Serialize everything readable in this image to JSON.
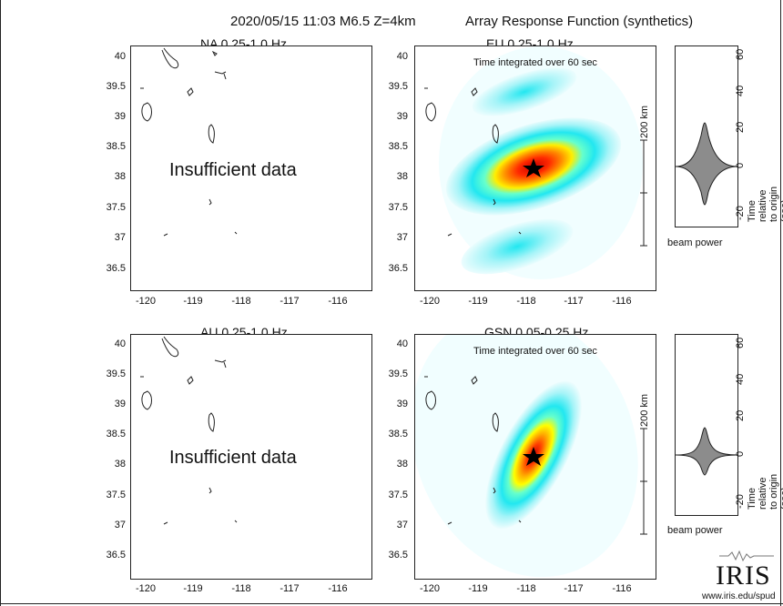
{
  "header": {
    "event": "2020/05/15 11:03  M6.5  Z=4km",
    "title": "Array Response Function (synthetics)"
  },
  "panels": [
    {
      "id": "na",
      "title": "NA  0.25-1.0 Hz",
      "note": "Insufficient data",
      "subtitle": ""
    },
    {
      "id": "eu",
      "title": "EU  0.25-1.0 Hz",
      "note": "",
      "subtitle": "Time integrated over 60 sec"
    },
    {
      "id": "au",
      "title": "AU  0.25-1.0 Hz",
      "note": "Insufficient data",
      "subtitle": ""
    },
    {
      "id": "gsn",
      "title": "GSN  0.05-0.25 Hz",
      "note": "",
      "subtitle": "Time integrated over 60 sec"
    }
  ],
  "axes": {
    "y_ticks": [
      "40",
      "39.5",
      "39",
      "38.5",
      "38",
      "37.5",
      "37",
      "36.5"
    ],
    "x_ticks": [
      "-120",
      "-119",
      "-118",
      "-117",
      "-116"
    ]
  },
  "scale_bar": {
    "label": "200 km"
  },
  "beam": {
    "xlabel": "beam power",
    "ylabel": "Time relative to origin (sec)",
    "ticks": [
      "60",
      "40",
      "20",
      "0",
      "-20"
    ]
  },
  "logo": {
    "text": "IRIS",
    "url": "www.iris.edu/spud"
  },
  "colors": {
    "frame": "#222222",
    "cyan": "#00ffff",
    "yellow": "#ffff00",
    "red": "#ff0000",
    "beam_fill": "#8c8c8c"
  }
}
